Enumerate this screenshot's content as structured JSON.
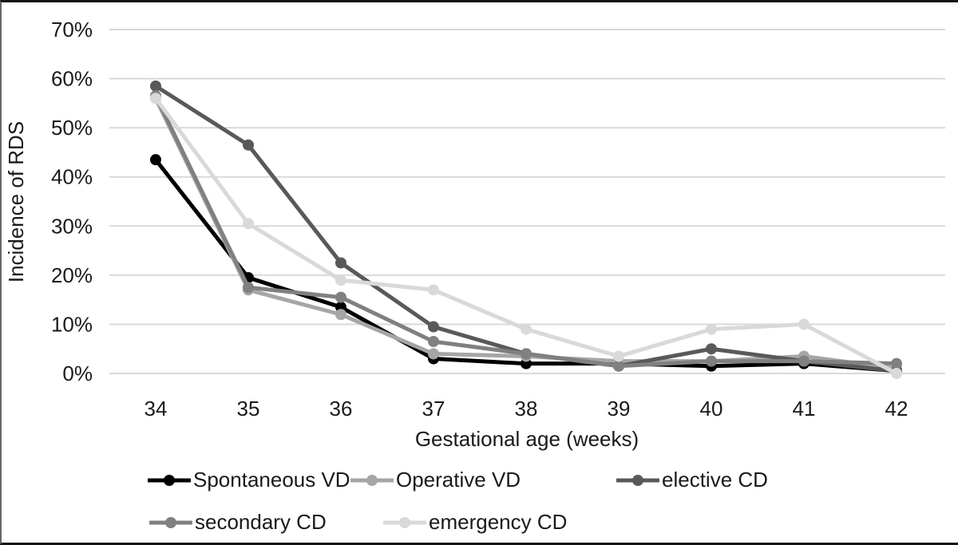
{
  "figure": {
    "background": "#ffffff",
    "gridline_color": "#d9d9d9",
    "text_color": "#1a1a1a"
  },
  "chart_data": {
    "type": "line",
    "title": "",
    "xlabel": "Gestational age (weeks)",
    "ylabel": "Incidence of RDS",
    "x": [
      34,
      35,
      36,
      37,
      38,
      39,
      40,
      41,
      42
    ],
    "y_ticks": [
      "0%",
      "10%",
      "20%",
      "30%",
      "40%",
      "50%",
      "60%",
      "70%"
    ],
    "ylim": [
      0,
      70
    ],
    "y_unit": "%",
    "grid": "horizontal",
    "legend_position": "bottom",
    "series": [
      {
        "name": "Spontaneous VD",
        "color": "#000000",
        "values": [
          43.5,
          19.5,
          13.5,
          3,
          2,
          2,
          1.5,
          2,
          0.5
        ]
      },
      {
        "name": "Operative VD",
        "color": "#a6a6a6",
        "values": [
          56,
          17,
          12,
          4,
          3.5,
          2.5,
          2.5,
          3.5,
          1
        ]
      },
      {
        "name": "elective CD",
        "color": "#595959",
        "values": [
          58.5,
          46.5,
          22.5,
          9.5,
          4,
          1.5,
          5,
          2.5,
          0.5
        ]
      },
      {
        "name": "secondary CD",
        "color": "#808080",
        "values": [
          56.5,
          17.5,
          15.5,
          6.5,
          4,
          1.5,
          2.5,
          2.5,
          2
        ]
      },
      {
        "name": "emergency CD",
        "color": "#d9d9d9",
        "values": [
          56,
          30.5,
          19,
          17,
          9,
          3.5,
          9,
          10,
          0
        ]
      }
    ]
  }
}
